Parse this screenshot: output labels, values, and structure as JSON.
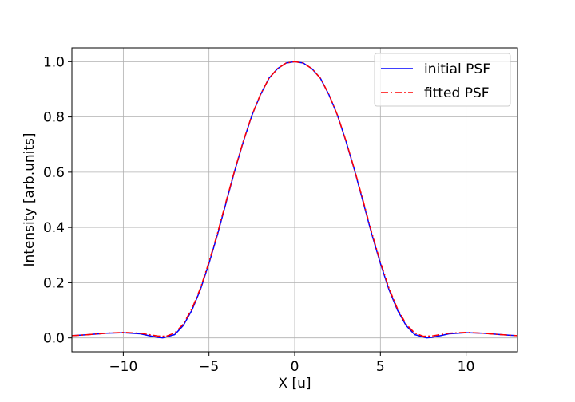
{
  "chart_data": {
    "type": "line",
    "xlabel": "X [u]",
    "ylabel": "Intensity [arb.units]",
    "xlim": [
      -13,
      13
    ],
    "ylim": [
      -0.05,
      1.05
    ],
    "xticks": [
      -10,
      -5,
      0,
      5,
      10
    ],
    "xtick_labels": [
      "−10",
      "−5",
      "0",
      "5",
      "10"
    ],
    "yticks": [
      0.0,
      0.2,
      0.4,
      0.6,
      0.8,
      1.0
    ],
    "ytick_labels": [
      "0.0",
      "0.2",
      "0.4",
      "0.6",
      "0.8",
      "1.0"
    ],
    "grid": true,
    "legend_position": "top-right",
    "series": [
      {
        "name": "initial PSF",
        "color": "#0000ff",
        "style": "solid",
        "x": [
          -13,
          -12,
          -11,
          -10,
          -9,
          -8.5,
          -8,
          -7.7,
          -7,
          -6.5,
          -6,
          -5.5,
          -5,
          -4.5,
          -4,
          -3.5,
          -3,
          -2.5,
          -2,
          -1.5,
          -1,
          -0.5,
          0,
          0.5,
          1,
          1.5,
          2,
          2.5,
          3,
          3.5,
          4,
          4.5,
          5,
          5.5,
          6,
          6.5,
          7,
          7.7,
          8,
          8.5,
          9,
          10,
          11,
          12,
          13
        ],
        "y": [
          0.008,
          0.012,
          0.017,
          0.019,
          0.015,
          0.008,
          0.002,
          0.0,
          0.012,
          0.045,
          0.1,
          0.175,
          0.27,
          0.375,
          0.49,
          0.605,
          0.71,
          0.805,
          0.88,
          0.94,
          0.975,
          0.995,
          1.0,
          0.995,
          0.975,
          0.94,
          0.88,
          0.805,
          0.71,
          0.605,
          0.49,
          0.375,
          0.27,
          0.175,
          0.1,
          0.045,
          0.012,
          0.0,
          0.002,
          0.008,
          0.015,
          0.019,
          0.017,
          0.012,
          0.008
        ]
      },
      {
        "name": "fitted PSF",
        "color": "#ff0000",
        "style": "dashdot",
        "x": [
          -13,
          -12,
          -11,
          -10,
          -9,
          -8.5,
          -8,
          -7.5,
          -7,
          -6.5,
          -6,
          -5.5,
          -5,
          -4.5,
          -4,
          -3.5,
          -3,
          -2.5,
          -2,
          -1.5,
          -1,
          -0.5,
          0,
          0.5,
          1,
          1.5,
          2,
          2.5,
          3,
          3.5,
          4,
          4.5,
          5,
          5.5,
          6,
          6.5,
          7,
          7.5,
          8,
          8.5,
          9,
          10,
          11,
          12,
          13
        ],
        "y": [
          0.008,
          0.012,
          0.017,
          0.02,
          0.017,
          0.012,
          0.007,
          0.006,
          0.018,
          0.05,
          0.105,
          0.18,
          0.275,
          0.38,
          0.495,
          0.607,
          0.712,
          0.806,
          0.881,
          0.94,
          0.975,
          0.995,
          1.0,
          0.995,
          0.975,
          0.94,
          0.881,
          0.806,
          0.712,
          0.607,
          0.495,
          0.38,
          0.275,
          0.18,
          0.105,
          0.05,
          0.018,
          0.006,
          0.007,
          0.012,
          0.017,
          0.02,
          0.017,
          0.012,
          0.008
        ]
      }
    ]
  }
}
